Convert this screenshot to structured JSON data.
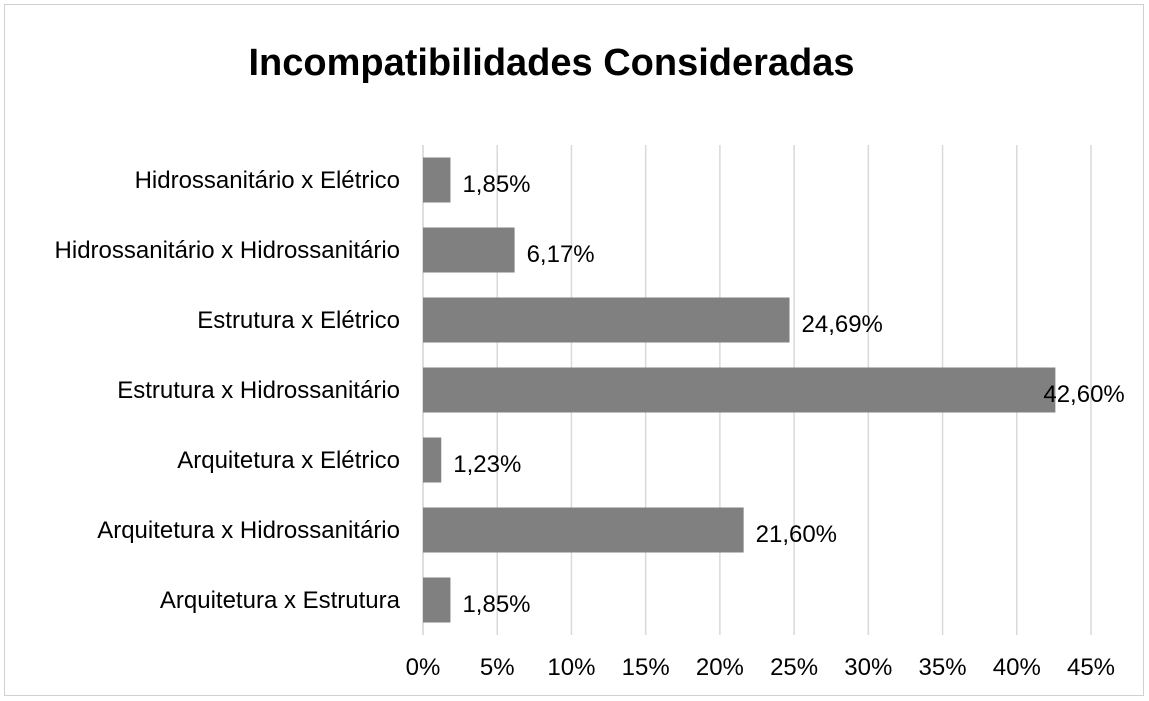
{
  "chart_data": {
    "type": "bar",
    "orientation": "horizontal",
    "title": "Incompatibilidades Consideradas",
    "categories": [
      "Hidrossanitário x Elétrico",
      "Hidrossanitário x Hidrossanitário",
      "Estrutura x Elétrico",
      "Estrutura x Hidrossanitário",
      "Arquitetura x Elétrico",
      "Arquitetura x Hidrossanitário",
      "Arquitetura x Estrutura"
    ],
    "values": [
      1.85,
      6.17,
      24.69,
      42.6,
      1.23,
      21.6,
      1.85
    ],
    "data_labels": [
      "1,85%",
      "6,17%",
      "24,69%",
      "42,60%",
      "1,23%",
      "21,60%",
      "1,85%"
    ],
    "xlim": [
      0,
      45
    ],
    "x_ticks": [
      0,
      5,
      10,
      15,
      20,
      25,
      30,
      35,
      40,
      45
    ],
    "x_tick_labels": [
      "0%",
      "5%",
      "10%",
      "15%",
      "20%",
      "25%",
      "30%",
      "35%",
      "40%",
      "45%"
    ],
    "xlabel": "",
    "ylabel": "",
    "grid": "vertical",
    "legend": "none",
    "bar_color": "#808080",
    "grid_color": "#d9d9d9"
  }
}
